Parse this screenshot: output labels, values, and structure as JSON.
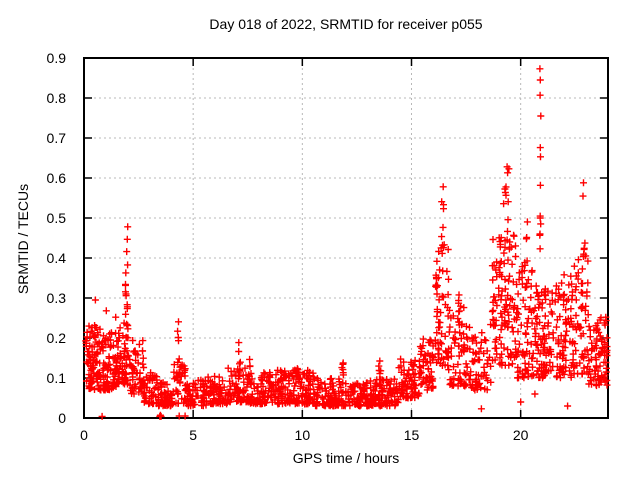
{
  "page": {
    "title": "Day 018 of 2022, SRMTID for receiver p055"
  },
  "chart_data": {
    "type": "scatter",
    "title": "Day 018 of 2022, SRMTID for receiver p055",
    "xlabel": "GPS time / hours",
    "ylabel": "SRMTID / TECUs",
    "xlim": [
      0,
      24
    ],
    "ylim": [
      0,
      0.9
    ],
    "xtick_values": [
      0,
      5,
      10,
      15,
      20
    ],
    "xtick_labels": [
      "0",
      "5",
      "10",
      "15",
      "20"
    ],
    "ytick_values": [
      0,
      0.1,
      0.2,
      0.3,
      0.4,
      0.5,
      0.6,
      0.7,
      0.8,
      0.9
    ],
    "ytick_labels": [
      "0",
      "0.1",
      "0.2",
      "0.3",
      "0.4",
      "0.5",
      "0.6",
      "0.7",
      "0.8",
      "0.9"
    ],
    "grid": {
      "enabled": true,
      "color": "#b8b8b8",
      "style": "dotted"
    },
    "legend": {
      "visible": false
    },
    "marker": {
      "shape": "plus",
      "color": "#ff0000",
      "size": 7
    },
    "series_name": "SRMTID",
    "seed": 20220118,
    "note": "~1900 dense points; cloud encoded as envelope bands and spike columns [see keys below], plus explicit extreme points",
    "bands": [
      [
        0.05,
        0.75,
        90,
        0.07,
        0.235,
        1.6
      ],
      [
        0.75,
        1.55,
        85,
        0.07,
        0.215,
        1.6
      ],
      [
        1.55,
        2.1,
        55,
        0.085,
        0.24,
        1.4
      ],
      [
        2.1,
        2.75,
        55,
        0.06,
        0.195,
        1.5
      ],
      [
        2.75,
        3.35,
        45,
        0.035,
        0.115,
        1.4
      ],
      [
        3.35,
        4.1,
        55,
        0.03,
        0.09,
        1.4
      ],
      [
        4.1,
        4.75,
        45,
        0.035,
        0.135,
        1.5
      ],
      [
        4.75,
        5.6,
        55,
        0.03,
        0.095,
        1.4
      ],
      [
        5.6,
        6.6,
        70,
        0.035,
        0.105,
        1.5
      ],
      [
        6.6,
        7.6,
        70,
        0.04,
        0.125,
        1.6
      ],
      [
        7.6,
        8.6,
        75,
        0.035,
        0.115,
        1.6
      ],
      [
        8.6,
        9.6,
        75,
        0.035,
        0.12,
        1.6
      ],
      [
        9.6,
        10.6,
        80,
        0.035,
        0.12,
        1.6
      ],
      [
        10.6,
        11.8,
        85,
        0.03,
        0.1,
        1.5
      ],
      [
        11.8,
        13.2,
        95,
        0.03,
        0.095,
        1.5
      ],
      [
        13.2,
        14.4,
        80,
        0.03,
        0.1,
        1.5
      ],
      [
        14.4,
        15.4,
        70,
        0.05,
        0.155,
        1.5
      ],
      [
        15.4,
        16.1,
        55,
        0.07,
        0.21,
        1.4
      ],
      [
        16.1,
        16.7,
        60,
        0.13,
        0.45,
        1.5
      ],
      [
        16.7,
        17.7,
        70,
        0.08,
        0.28,
        1.6
      ],
      [
        17.7,
        18.7,
        55,
        0.07,
        0.26,
        1.6
      ],
      [
        18.7,
        19.8,
        110,
        0.13,
        0.47,
        1.4
      ],
      [
        19.8,
        20.6,
        75,
        0.1,
        0.4,
        1.5
      ],
      [
        20.6,
        21.6,
        90,
        0.1,
        0.33,
        1.4
      ],
      [
        21.6,
        22.4,
        75,
        0.1,
        0.36,
        1.3
      ],
      [
        22.4,
        23.1,
        60,
        0.11,
        0.42,
        1.4
      ],
      [
        23.1,
        24.0,
        80,
        0.08,
        0.26,
        1.3
      ]
    ],
    "spikes": [
      [
        1.95,
        0.1,
        16,
        0.2,
        0.465
      ],
      [
        4.33,
        0.1,
        6,
        0.13,
        0.245
      ],
      [
        7.1,
        0.12,
        7,
        0.1,
        0.19
      ],
      [
        7.6,
        0.1,
        4,
        0.1,
        0.155
      ],
      [
        9.75,
        0.1,
        5,
        0.11,
        0.155
      ],
      [
        11.85,
        0.12,
        6,
        0.1,
        0.15
      ],
      [
        13.55,
        0.12,
        5,
        0.1,
        0.155
      ],
      [
        15.55,
        0.1,
        3,
        0.13,
        0.165
      ],
      [
        16.42,
        0.1,
        6,
        0.42,
        0.575
      ],
      [
        17.2,
        0.1,
        7,
        0.2,
        0.33
      ],
      [
        19.35,
        0.3,
        14,
        0.42,
        0.63
      ],
      [
        20.3,
        0.12,
        3,
        0.4,
        0.525
      ],
      [
        20.9,
        0.07,
        7,
        0.42,
        0.6
      ],
      [
        22.9,
        0.1,
        7,
        0.4,
        0.59
      ]
    ],
    "extreme_points": [
      [
        20.88,
        0.873
      ],
      [
        20.9,
        0.845
      ],
      [
        20.89,
        0.807
      ],
      [
        20.92,
        0.755
      ],
      [
        20.9,
        0.676
      ],
      [
        20.91,
        0.653
      ],
      [
        0.52,
        0.295
      ],
      [
        1.02,
        0.268
      ],
      [
        1.45,
        0.252
      ],
      [
        2.0,
        0.478
      ],
      [
        16.45,
        0.578
      ],
      [
        19.38,
        0.628
      ],
      [
        22.88,
        0.588
      ],
      [
        23.9,
        0.252
      ]
    ],
    "outlier_points": [
      [
        0.83,
        0.004
      ],
      [
        3.47,
        0.004
      ],
      [
        3.5,
        0.007
      ],
      [
        3.53,
        0.004
      ],
      [
        4.36,
        0.005
      ],
      [
        4.63,
        0.005
      ],
      [
        18.2,
        0.023
      ],
      [
        20.0,
        0.04
      ],
      [
        20.65,
        0.06
      ],
      [
        22.15,
        0.03
      ]
    ]
  }
}
